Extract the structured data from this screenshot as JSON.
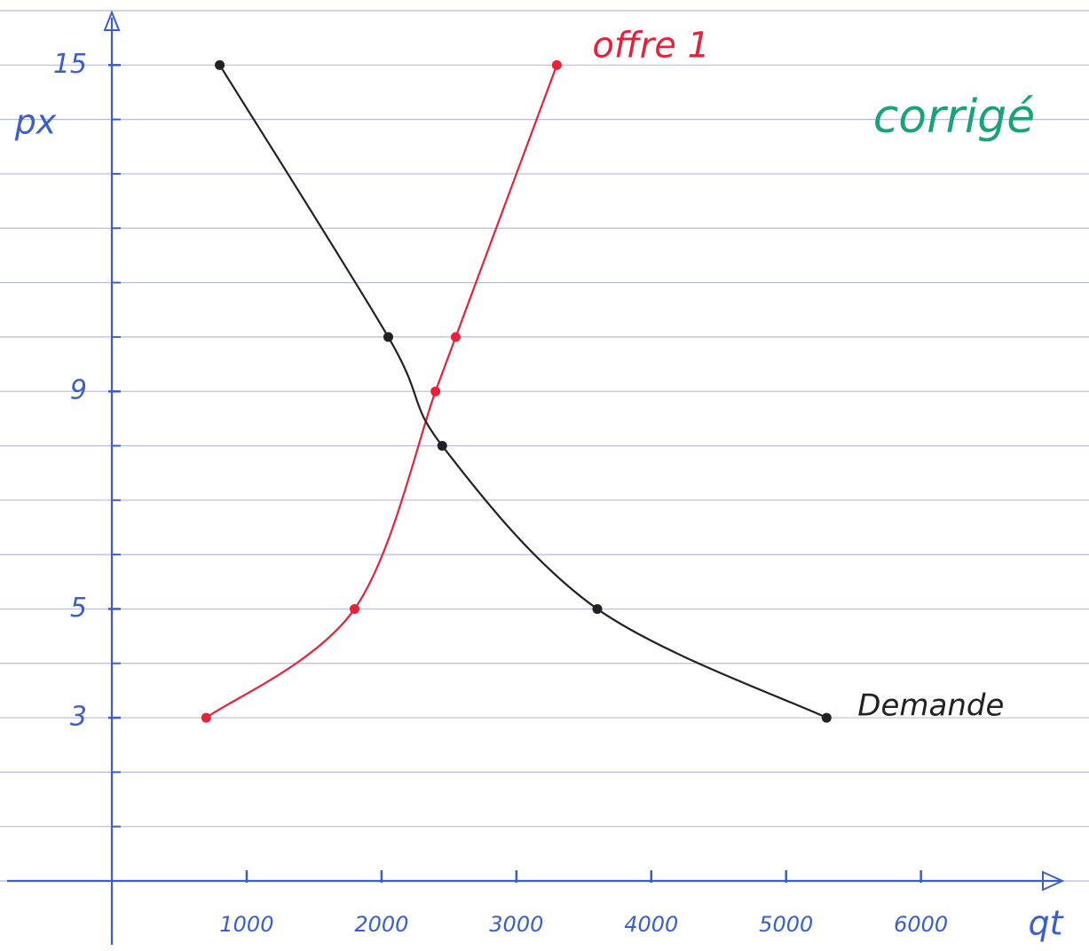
{
  "chart_data": {
    "type": "line",
    "annotation": "corrigé",
    "xlabel": "qt",
    "ylabel": "px",
    "series": [
      {
        "name": "offre 1",
        "color": "#e8203a",
        "x": [
          700,
          1800,
          2400,
          2550,
          3300
        ],
        "values": [
          3,
          5,
          9,
          10,
          15
        ]
      },
      {
        "name": "Demande",
        "color": "#222222",
        "x": [
          800,
          2050,
          2450,
          3600,
          5300
        ],
        "values": [
          15,
          10,
          8,
          5,
          3
        ]
      }
    ],
    "xlim": [
      0,
      7200
    ],
    "ylim": [
      0,
      16
    ],
    "xticks": [
      1000,
      2000,
      3000,
      4000,
      5000,
      6000
    ],
    "yticks": [
      3,
      5,
      9,
      15
    ],
    "axis_color": "#3a5fcd",
    "annotation_color": "#1aa37a"
  }
}
